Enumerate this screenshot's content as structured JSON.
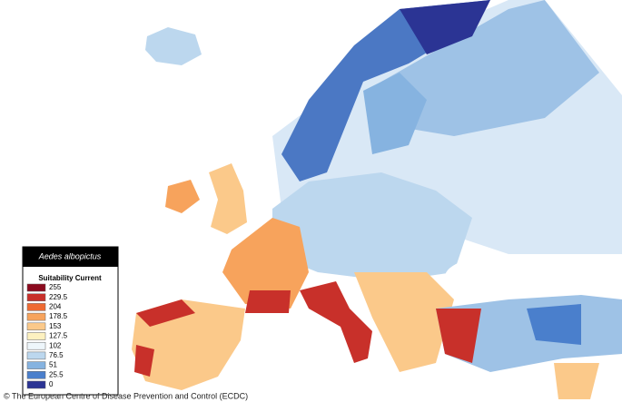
{
  "legend": {
    "title": "Aedes albopictus",
    "subtitle": "Suitability Current",
    "entries": [
      {
        "value": 255,
        "color": "#8b0a1e"
      },
      {
        "value": 229.5,
        "color": "#c8302a"
      },
      {
        "value": 204,
        "color": "#ef6a32"
      },
      {
        "value": 178.5,
        "color": "#f7a35c"
      },
      {
        "value": 153,
        "color": "#fbc98a"
      },
      {
        "value": 127.5,
        "color": "#fdf1c0"
      },
      {
        "value": 102,
        "color": "#eef6fb"
      },
      {
        "value": 76.5,
        "color": "#bcd7ee"
      },
      {
        "value": 51,
        "color": "#86b3e0"
      },
      {
        "value": 25.5,
        "color": "#4a7fcc"
      },
      {
        "value": 0,
        "color": "#2b3494"
      }
    ]
  },
  "footer": {
    "copyright": "© The European Centre of Disease Prevention and Control (ECDC)"
  }
}
